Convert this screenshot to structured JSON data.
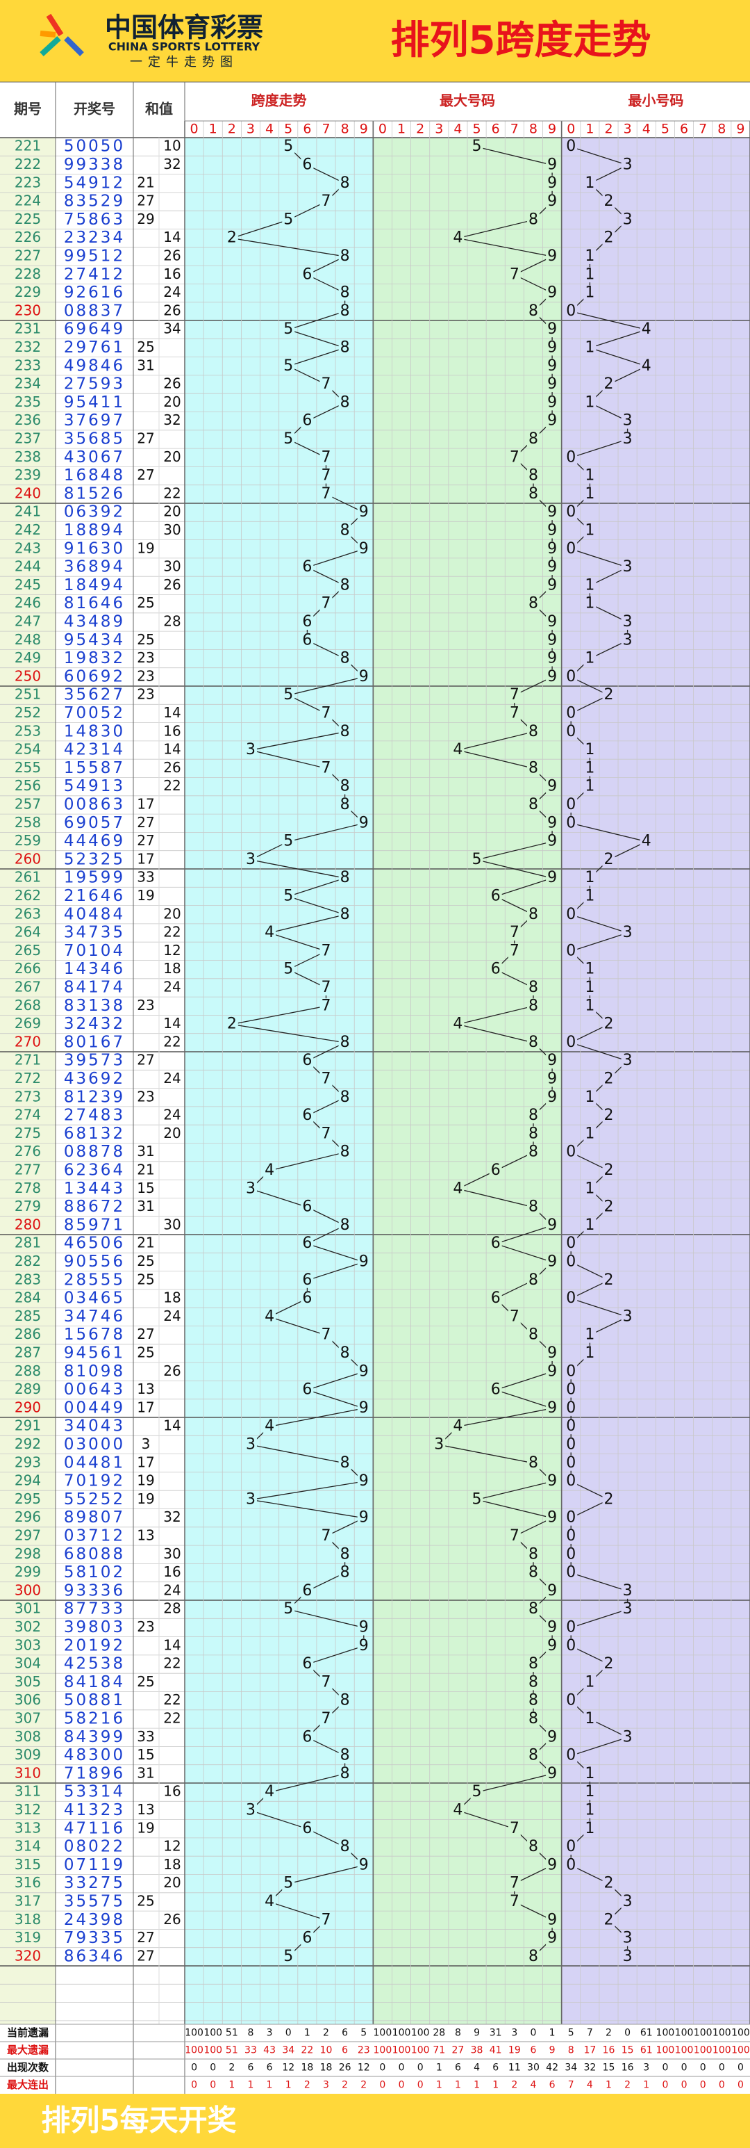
{
  "header": {
    "logo": "中国体育彩票",
    "logo_en": "CHINA SPORTS LOTTERY",
    "logo_sub": "一定牛走势图",
    "title": "排列5跨度走势"
  },
  "columns": {
    "issue": "期号",
    "number": "开奖号",
    "sum": "和值",
    "groups": [
      "跨度走势",
      "最大号码",
      "最小号码"
    ],
    "digits": [
      0,
      1,
      2,
      3,
      4,
      5,
      6,
      7,
      8,
      9
    ]
  },
  "rows": [
    [
      221,
      "50050",
      10,
      5,
      5,
      0
    ],
    [
      222,
      "99338",
      32,
      6,
      9,
      3
    ],
    [
      223,
      "54912",
      21,
      8,
      9,
      1
    ],
    [
      224,
      "83529",
      27,
      7,
      9,
      2
    ],
    [
      225,
      "75863",
      29,
      5,
      8,
      3
    ],
    [
      226,
      "23234",
      14,
      2,
      4,
      2
    ],
    [
      227,
      "99512",
      26,
      8,
      9,
      1
    ],
    [
      228,
      "27412",
      16,
      6,
      7,
      1
    ],
    [
      229,
      "92616",
      24,
      8,
      9,
      1
    ],
    [
      230,
      "08837",
      26,
      8,
      8,
      0
    ],
    [
      231,
      "69649",
      34,
      5,
      9,
      4
    ],
    [
      232,
      "29761",
      25,
      8,
      9,
      1
    ],
    [
      233,
      "49846",
      31,
      5,
      9,
      4
    ],
    [
      234,
      "27593",
      26,
      7,
      9,
      2
    ],
    [
      235,
      "95411",
      20,
      8,
      9,
      1
    ],
    [
      236,
      "37697",
      32,
      6,
      9,
      3
    ],
    [
      237,
      "35685",
      27,
      5,
      8,
      3
    ],
    [
      238,
      "43067",
      20,
      7,
      7,
      0
    ],
    [
      239,
      "16848",
      27,
      7,
      8,
      1
    ],
    [
      240,
      "81526",
      22,
      7,
      8,
      1
    ],
    [
      241,
      "06392",
      20,
      9,
      9,
      0
    ],
    [
      242,
      "18894",
      30,
      8,
      9,
      1
    ],
    [
      243,
      "91630",
      19,
      9,
      9,
      0
    ],
    [
      244,
      "36894",
      30,
      6,
      9,
      3
    ],
    [
      245,
      "18494",
      26,
      8,
      9,
      1
    ],
    [
      246,
      "81646",
      25,
      7,
      8,
      1
    ],
    [
      247,
      "43489",
      28,
      6,
      9,
      3
    ],
    [
      248,
      "95434",
      25,
      6,
      9,
      3
    ],
    [
      249,
      "19832",
      23,
      8,
      9,
      1
    ],
    [
      250,
      "60692",
      23,
      9,
      9,
      0
    ],
    [
      251,
      "35627",
      23,
      5,
      7,
      2
    ],
    [
      252,
      "70052",
      14,
      7,
      7,
      0
    ],
    [
      253,
      "14830",
      16,
      8,
      8,
      0
    ],
    [
      254,
      "42314",
      14,
      3,
      4,
      1
    ],
    [
      255,
      "15587",
      26,
      7,
      8,
      1
    ],
    [
      256,
      "54913",
      22,
      8,
      9,
      1
    ],
    [
      257,
      "00863",
      17,
      8,
      8,
      0
    ],
    [
      258,
      "69057",
      27,
      9,
      9,
      0
    ],
    [
      259,
      "44469",
      27,
      5,
      9,
      4
    ],
    [
      260,
      "52325",
      17,
      3,
      5,
      2
    ],
    [
      261,
      "19599",
      33,
      8,
      9,
      1
    ],
    [
      262,
      "21646",
      19,
      5,
      6,
      1
    ],
    [
      263,
      "40484",
      20,
      8,
      8,
      0
    ],
    [
      264,
      "34735",
      22,
      4,
      7,
      3
    ],
    [
      265,
      "70104",
      12,
      7,
      7,
      0
    ],
    [
      266,
      "14346",
      18,
      5,
      6,
      1
    ],
    [
      267,
      "84174",
      24,
      7,
      8,
      1
    ],
    [
      268,
      "83138",
      23,
      7,
      8,
      1
    ],
    [
      269,
      "32432",
      14,
      2,
      4,
      2
    ],
    [
      270,
      "80167",
      22,
      8,
      8,
      0
    ],
    [
      271,
      "39573",
      27,
      6,
      9,
      3
    ],
    [
      272,
      "43692",
      24,
      7,
      9,
      2
    ],
    [
      273,
      "81239",
      23,
      8,
      9,
      1
    ],
    [
      274,
      "27483",
      24,
      6,
      8,
      2
    ],
    [
      275,
      "68132",
      20,
      7,
      8,
      1
    ],
    [
      276,
      "08878",
      31,
      8,
      8,
      0
    ],
    [
      277,
      "62364",
      21,
      4,
      6,
      2
    ],
    [
      278,
      "13443",
      15,
      3,
      4,
      1
    ],
    [
      279,
      "88672",
      31,
      6,
      8,
      2
    ],
    [
      280,
      "85971",
      30,
      8,
      9,
      1
    ],
    [
      281,
      "46506",
      21,
      6,
      6,
      0
    ],
    [
      282,
      "90556",
      25,
      9,
      9,
      0
    ],
    [
      283,
      "28555",
      25,
      6,
      8,
      2
    ],
    [
      284,
      "03465",
      18,
      6,
      6,
      0
    ],
    [
      285,
      "34746",
      24,
      4,
      7,
      3
    ],
    [
      286,
      "15678",
      27,
      7,
      8,
      1
    ],
    [
      287,
      "94561",
      25,
      8,
      9,
      1
    ],
    [
      288,
      "81098",
      26,
      9,
      9,
      0
    ],
    [
      289,
      "00643",
      13,
      6,
      6,
      0
    ],
    [
      290,
      "00449",
      17,
      9,
      9,
      0
    ],
    [
      291,
      "34043",
      14,
      4,
      4,
      0
    ],
    [
      292,
      "03000",
      3,
      3,
      3,
      0
    ],
    [
      293,
      "04481",
      17,
      8,
      8,
      0
    ],
    [
      294,
      "70192",
      19,
      9,
      9,
      0
    ],
    [
      295,
      "55252",
      19,
      3,
      5,
      2
    ],
    [
      296,
      "89807",
      32,
      9,
      9,
      0
    ],
    [
      297,
      "03712",
      13,
      7,
      7,
      0
    ],
    [
      298,
      "68088",
      30,
      8,
      8,
      0
    ],
    [
      299,
      "58102",
      16,
      8,
      8,
      0
    ],
    [
      300,
      "93336",
      24,
      6,
      9,
      3
    ],
    [
      301,
      "87733",
      28,
      5,
      8,
      3
    ],
    [
      302,
      "39803",
      23,
      9,
      9,
      0
    ],
    [
      303,
      "20192",
      14,
      9,
      9,
      0
    ],
    [
      304,
      "42538",
      22,
      6,
      8,
      2
    ],
    [
      305,
      "84184",
      25,
      7,
      8,
      1
    ],
    [
      306,
      "50881",
      22,
      8,
      8,
      0
    ],
    [
      307,
      "58216",
      22,
      7,
      8,
      1
    ],
    [
      308,
      "84399",
      33,
      6,
      9,
      3
    ],
    [
      309,
      "48300",
      15,
      8,
      8,
      0
    ],
    [
      310,
      "71896",
      31,
      8,
      9,
      1
    ],
    [
      311,
      "53314",
      16,
      4,
      5,
      1
    ],
    [
      312,
      "41323",
      13,
      3,
      4,
      1
    ],
    [
      313,
      "47116",
      19,
      6,
      7,
      1
    ],
    [
      314,
      "08022",
      12,
      8,
      8,
      0
    ],
    [
      315,
      "07119",
      18,
      9,
      9,
      0
    ],
    [
      316,
      "33275",
      20,
      5,
      7,
      2
    ],
    [
      317,
      "35575",
      25,
      4,
      7,
      3
    ],
    [
      318,
      "24398",
      26,
      7,
      9,
      2
    ],
    [
      319,
      "79335",
      27,
      6,
      9,
      3
    ],
    [
      320,
      "86346",
      27,
      5,
      8,
      3
    ]
  ],
  "stats": [
    {
      "label": "当前遗漏",
      "values": [
        100,
        100,
        51,
        8,
        3,
        0,
        1,
        2,
        6,
        5,
        100,
        100,
        100,
        28,
        8,
        9,
        31,
        3,
        0,
        1,
        5,
        7,
        2,
        0,
        61,
        100,
        100,
        100,
        100,
        100
      ]
    },
    {
      "label": "最大遗漏",
      "values": [
        100,
        100,
        51,
        33,
        43,
        34,
        22,
        10,
        6,
        23,
        100,
        100,
        100,
        71,
        27,
        38,
        41,
        19,
        6,
        9,
        8,
        17,
        16,
        15,
        61,
        100,
        100,
        100,
        100,
        100
      ]
    },
    {
      "label": "出现次数",
      "values": [
        0,
        0,
        2,
        6,
        6,
        12,
        18,
        18,
        26,
        12,
        0,
        0,
        0,
        1,
        6,
        4,
        6,
        11,
        30,
        42,
        34,
        32,
        15,
        16,
        3,
        0,
        0,
        0,
        0,
        0
      ]
    },
    {
      "label": "最大连出",
      "values": [
        0,
        0,
        1,
        1,
        1,
        1,
        2,
        3,
        2,
        2,
        0,
        0,
        0,
        1,
        1,
        1,
        1,
        2,
        4,
        6,
        7,
        4,
        1,
        2,
        1,
        0,
        0,
        0,
        0,
        0
      ]
    }
  ],
  "footer": "排列5每天开奖"
}
